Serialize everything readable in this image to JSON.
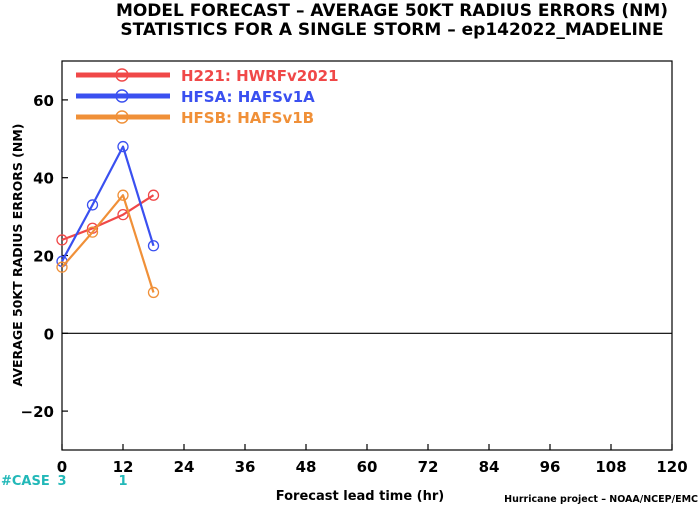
{
  "chart_data": {
    "type": "line",
    "title_line1": "MODEL FORECAST – AVERAGE 50KT RADIUS ERRORS (NM)",
    "title_line2": "STATISTICS FOR A SINGLE STORM – ep142022_MADELINE",
    "xlabel": "Forecast lead time (hr)",
    "ylabel": "AVERAGE 50KT RADIUS ERRORS (NM)",
    "credit": "Hurricane project – NOAA/NCEP/EMC",
    "xlim": [
      0,
      120
    ],
    "ylim": [
      -30,
      70
    ],
    "x_ticks": [
      0,
      12,
      24,
      36,
      48,
      60,
      72,
      84,
      96,
      108,
      120
    ],
    "y_ticks": [
      -20,
      0,
      20,
      40,
      60
    ],
    "zero_line": true,
    "grid": false,
    "legend_position": "top-left",
    "series": [
      {
        "name": "H221: HWRFv2021",
        "color": "#f04848",
        "x": [
          0,
          6,
          12,
          18
        ],
        "y": [
          24,
          27,
          30.5,
          35.5
        ]
      },
      {
        "name": "HFSA: HAFSv1A",
        "color": "#3a50f0",
        "x": [
          0,
          6,
          12,
          18
        ],
        "y": [
          18.5,
          33,
          48,
          22.5
        ]
      },
      {
        "name": "HFSB: HAFSv1B",
        "color": "#f09038",
        "x": [
          0,
          6,
          12,
          18
        ],
        "y": [
          17,
          26,
          35.5,
          10.5
        ]
      }
    ],
    "case_counts": {
      "label": "#CASE",
      "color": "#22b8b8",
      "items": [
        {
          "x": 0,
          "text": "3"
        },
        {
          "x": 12,
          "text": "1"
        }
      ]
    }
  }
}
